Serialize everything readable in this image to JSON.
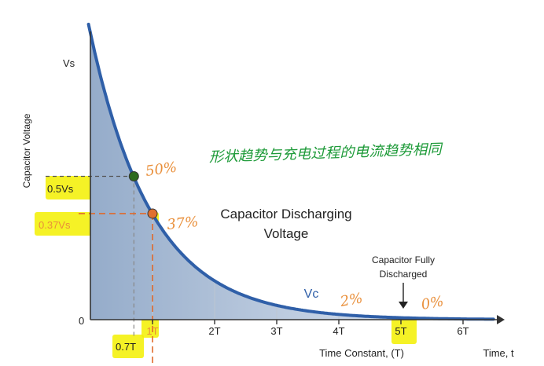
{
  "chart_data": {
    "type": "area",
    "title": "Capacitor Discharging Voltage",
    "title_lines": [
      "Capacitor Discharging",
      "Voltage"
    ],
    "ylabel": "Capacitor Voltage",
    "xlabel": "Time Constant, (T)",
    "x_axis_end_label": "Time, t",
    "y_top_label": "Vs",
    "origin_label": "0",
    "series_label": "Vc",
    "xlim": [
      0,
      6.5
    ],
    "ylim": [
      0,
      1.0
    ],
    "grid": true,
    "x_ticks": [
      {
        "x": 1,
        "label": "1T"
      },
      {
        "x": 2,
        "label": "2T"
      },
      {
        "x": 3,
        "label": "3T"
      },
      {
        "x": 4,
        "label": "4T"
      },
      {
        "x": 5,
        "label": "5T"
      },
      {
        "x": 6,
        "label": "6T"
      }
    ],
    "curve": {
      "function": "exp(-t/T)",
      "x": [
        0,
        0.5,
        1,
        1.5,
        2,
        2.5,
        3,
        4,
        5,
        6
      ],
      "y": [
        1.0,
        0.61,
        0.37,
        0.22,
        0.14,
        0.08,
        0.05,
        0.02,
        0.01,
        0.0
      ]
    },
    "markers": [
      {
        "x": 0.7,
        "y": 0.5,
        "label": "0.5Vs",
        "x_label": "0.7T",
        "color": "#2e6b1f"
      },
      {
        "x": 1.0,
        "y": 0.37,
        "label": "0.37Vs",
        "color": "#e07030"
      }
    ],
    "annotation": {
      "lines": [
        "Capacitor Fully",
        "Discharged"
      ],
      "x": 5
    },
    "handwritten": {
      "chinese_note": "形状趋势与充电过程的电流趋势相同",
      "pct_50": "50%",
      "pct_37": "37%",
      "pct_2": "2%",
      "pct_0": "0%"
    },
    "colors": {
      "curve": "#2f5fa8",
      "fill_top": "#95acca",
      "fill_bottom": "#e6ecf5",
      "grid": "#bdc6d2",
      "axis": "#333333",
      "highlight": "#f3f000",
      "handwriting_orange": "#e98f3a",
      "handwriting_green": "#1f9b3a",
      "dash_orange": "#e06a2b"
    }
  }
}
